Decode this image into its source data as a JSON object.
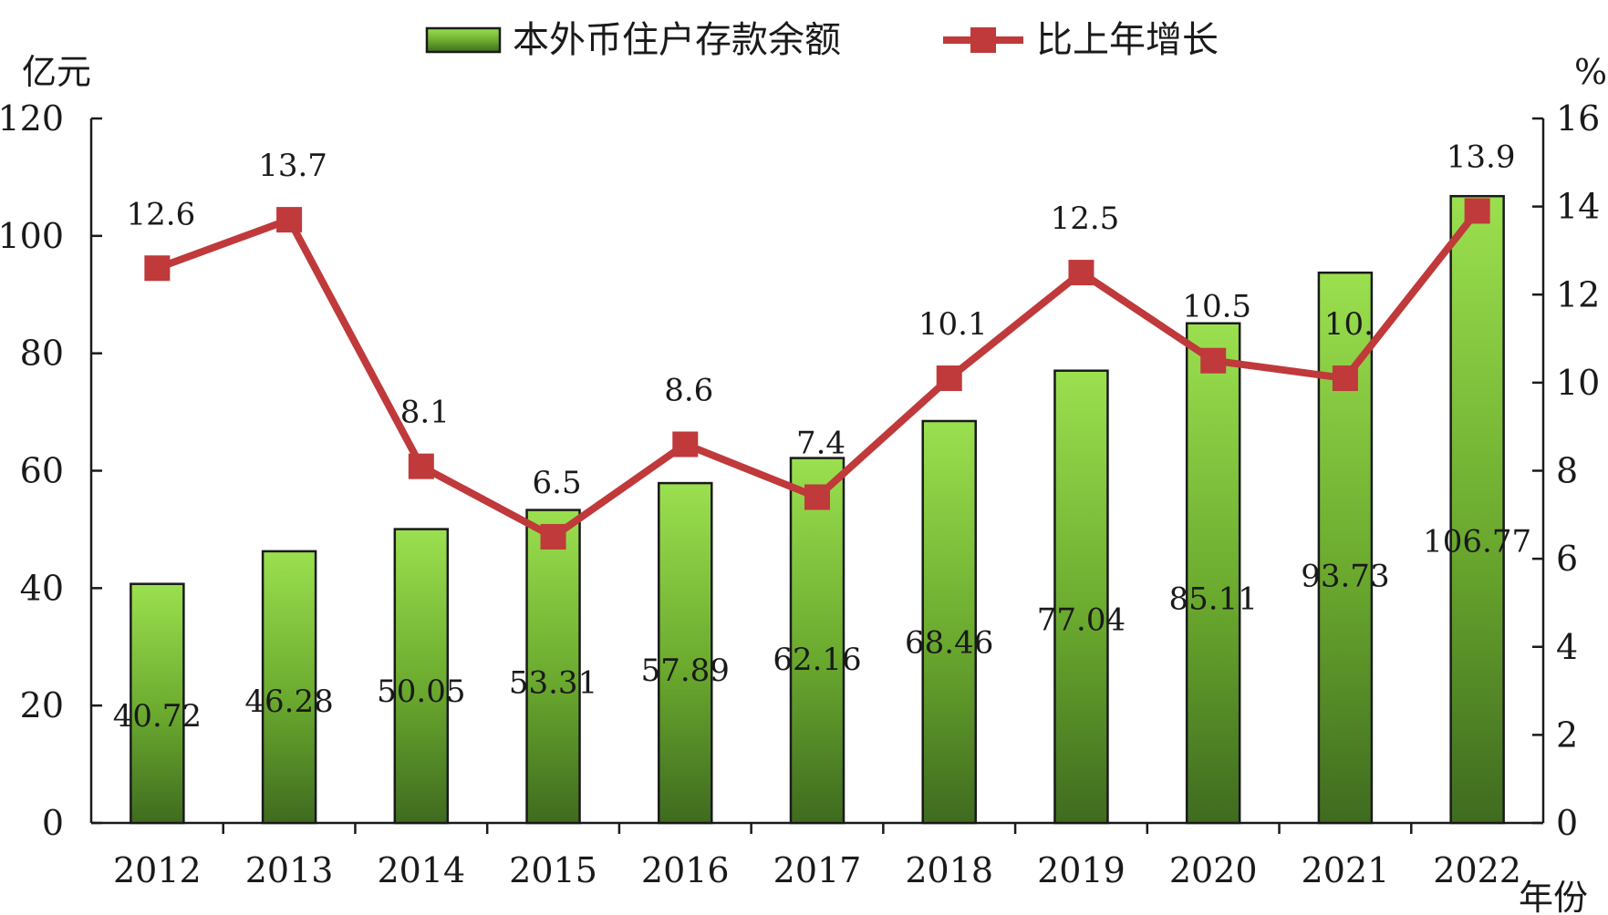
{
  "chart_data": {
    "type": "bar",
    "categories": [
      "2012",
      "2013",
      "2014",
      "2015",
      "2016",
      "2017",
      "2018",
      "2019",
      "2020",
      "2021",
      "2022"
    ],
    "series": [
      {
        "name": "本外币住户存款余额",
        "type": "bar",
        "axis": "left",
        "color": "#6fb52a",
        "values": [
          40.72,
          46.28,
          50.05,
          53.31,
          57.89,
          62.16,
          68.46,
          77.04,
          85.11,
          93.73,
          106.77
        ],
        "labels": [
          "40.72",
          "46.28",
          "50.05",
          "53.31",
          "57.89",
          "62.16",
          "68.46",
          "77.04",
          "85.11",
          "93.73",
          "106.77"
        ]
      },
      {
        "name": "比上年增长",
        "type": "line",
        "axis": "right",
        "color": "#c0393b",
        "values": [
          12.6,
          13.7,
          8.1,
          6.5,
          8.6,
          7.4,
          10.1,
          12.5,
          10.5,
          10.1,
          13.9
        ],
        "labels": [
          "12.6",
          "13.7",
          "8.1",
          "6.5",
          "8.6",
          "7.4",
          "10.1",
          "12.5",
          "10.5",
          "10.",
          "13.9"
        ]
      }
    ],
    "y_left": {
      "unit": "亿元",
      "ylim": [
        0,
        120
      ],
      "ticks": [
        "0",
        "20",
        "40",
        "60",
        "80",
        "100",
        "120"
      ]
    },
    "y_right": {
      "unit": "%",
      "ylim": [
        0,
        16
      ],
      "ticks": [
        "0",
        "2",
        "4",
        "6",
        "8",
        "10",
        "12",
        "14",
        "16"
      ]
    },
    "xlabel": "年份",
    "legend": {
      "position": "top",
      "labels": [
        "本外币住户存款余额",
        "比上年增长"
      ]
    },
    "grid": false
  }
}
